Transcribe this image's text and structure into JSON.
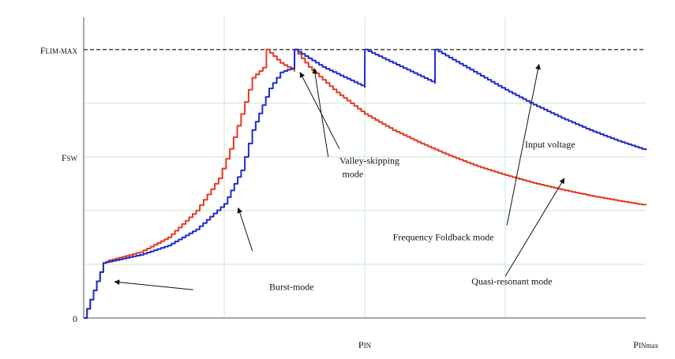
{
  "chart_data": {
    "type": "line",
    "title": "",
    "xlabel": "",
    "ylabel": "",
    "x_tick_labels": [
      {
        "main": "P",
        "sub": "IN",
        "x": 0.5
      },
      {
        "main": "P",
        "sub": "INmax",
        "x": 1.0
      }
    ],
    "y_tick_labels": [
      {
        "main": "F",
        "sub": "LIM-MAX",
        "y": 1.0
      },
      {
        "main": "F",
        "sub": "SW",
        "y": 0.6
      },
      {
        "main": "0",
        "sub": "",
        "y": 0.0
      }
    ],
    "xlim": [
      0,
      1
    ],
    "ylim": [
      0,
      1.12
    ],
    "grid": true,
    "limit_line": {
      "y": 1.0,
      "style": "dashed",
      "color": "#333333"
    },
    "series": [
      {
        "color": "#e23b22",
        "x": [
          0,
          0.035,
          0.045,
          0.1,
          0.15,
          0.2,
          0.24,
          0.26,
          0.28,
          0.3,
          0.325,
          0.3251,
          0.35,
          0.375,
          0.3751,
          0.4,
          0.45,
          0.5,
          0.55,
          0.6,
          0.65,
          0.7,
          0.75,
          0.8,
          0.85,
          0.9,
          0.95,
          1.0
        ],
        "y": [
          0,
          0.205,
          0.215,
          0.245,
          0.3,
          0.4,
          0.52,
          0.63,
          0.76,
          0.895,
          0.945,
          1.0,
          0.95,
          0.92,
          1.0,
          0.935,
          0.84,
          0.76,
          0.7,
          0.65,
          0.605,
          0.565,
          0.532,
          0.503,
          0.478,
          0.456,
          0.437,
          0.42
        ]
      },
      {
        "color": "#1f2bcc",
        "x": [
          0,
          0.035,
          0.045,
          0.1,
          0.15,
          0.2,
          0.25,
          0.28,
          0.3,
          0.33,
          0.35,
          0.375,
          0.3751,
          0.425,
          0.5,
          0.5001,
          0.55,
          0.625,
          0.6251,
          0.7,
          0.75,
          0.8,
          0.85,
          0.9,
          0.95,
          1.0
        ],
        "y": [
          0,
          0.205,
          0.21,
          0.235,
          0.27,
          0.33,
          0.425,
          0.55,
          0.7,
          0.855,
          0.915,
          0.935,
          1.0,
          0.935,
          0.86,
          1.0,
          0.95,
          0.875,
          1.0,
          0.91,
          0.85,
          0.795,
          0.745,
          0.7,
          0.66,
          0.625
        ]
      }
    ],
    "annotations": [
      {
        "text": "Valley-skipping",
        "x": 0.455,
        "y": 0.575
      },
      {
        "text": "mode",
        "x": 0.46,
        "y": 0.525
      },
      {
        "text": "Input voltage",
        "x": 0.785,
        "y": 0.635
      },
      {
        "text": "Frequency Foldback mode",
        "x": 0.55,
        "y": 0.29
      },
      {
        "text": "Quasi-resonant mode",
        "x": 0.69,
        "y": 0.125
      },
      {
        "text": "Burst-mode",
        "x": 0.33,
        "y": 0.105
      }
    ],
    "arrows": [
      {
        "from": [
          0.195,
          0.105
        ],
        "to": [
          0.055,
          0.135
        ]
      },
      {
        "from": [
          0.3,
          0.25
        ],
        "to": [
          0.275,
          0.41
        ]
      },
      {
        "from": [
          0.435,
          0.6
        ],
        "to": [
          0.41,
          0.93
        ]
      },
      {
        "from": [
          0.455,
          0.63
        ],
        "to": [
          0.385,
          0.915
        ]
      },
      {
        "from": [
          0.753,
          0.345
        ],
        "to": [
          0.81,
          0.945
        ]
      },
      {
        "from": [
          0.75,
          0.155
        ],
        "to": [
          0.855,
          0.52
        ]
      }
    ]
  }
}
